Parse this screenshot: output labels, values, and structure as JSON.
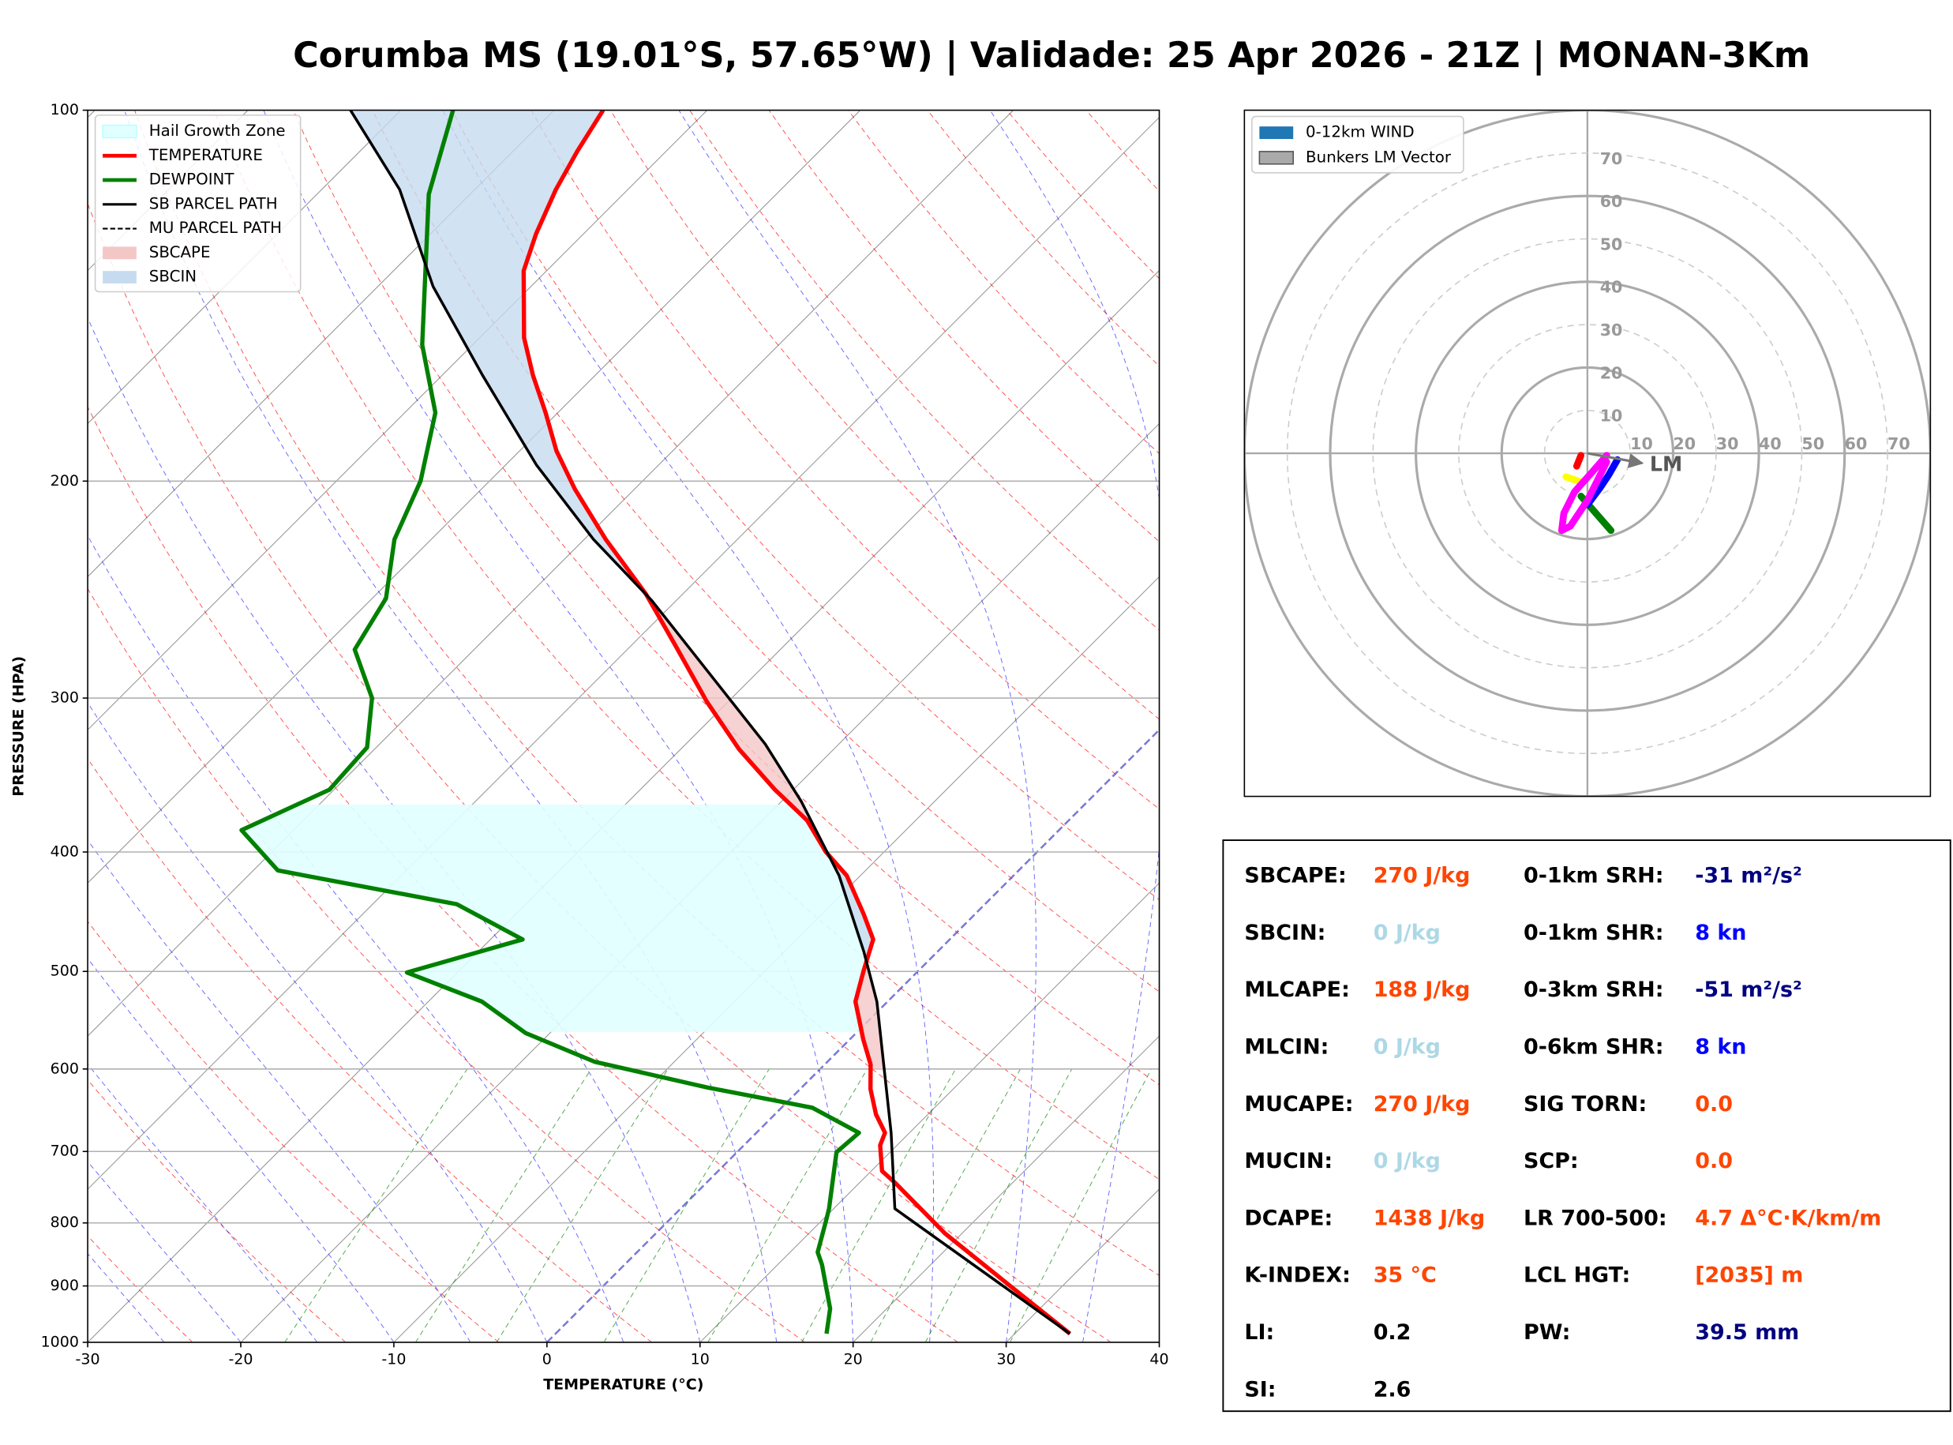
{
  "chart_data": [
    {
      "type": "skewt",
      "title": "Corumba MS (19.01°S, 57.65°W) | Validade: 25 Apr 2026 - 21Z | MONAN-3Km",
      "xlabel": "TEMPERATURE (°C)",
      "ylabel": "PRESSURE (HPA)",
      "xlim": [
        -30,
        40
      ],
      "ylim": [
        1000,
        100
      ],
      "yscale": "log",
      "grid": true,
      "xticks": [
        -30,
        -20,
        -10,
        0,
        10,
        20,
        30,
        40
      ],
      "yticks": [
        100,
        200,
        300,
        400,
        500,
        600,
        700,
        800,
        900,
        1000
      ],
      "series": [
        {
          "name": "TEMPERATURE",
          "color": "#ff0000",
          "style": "solid",
          "pressure": [
            984,
            906,
            816,
            743,
            726,
            692,
            676,
            653,
            623,
            595,
            568,
            529,
            499,
            471,
            449,
            418,
            400,
            377,
            356,
            330,
            302,
            272,
            247,
            223,
            203,
            189,
            176,
            164,
            153,
            135,
            126,
            116,
            108,
            100
          ],
          "values": [
            33.6,
            27.1,
            18.9,
            12.4,
            10.7,
            8.9,
            8.4,
            6.6,
            4.6,
            3.0,
            0.9,
            -2.1,
            -3.6,
            -5.0,
            -7.3,
            -10.9,
            -13.8,
            -17.1,
            -21.2,
            -26.2,
            -31.4,
            -37.1,
            -42.4,
            -48.6,
            -53.9,
            -57.6,
            -60.8,
            -64.1,
            -67.1,
            -71.5,
            -73.1,
            -74.7,
            -75.8,
            -76.8
          ]
        },
        {
          "name": "DEWPOINT",
          "color": "#008000",
          "style": "solid",
          "pressure": [
            984,
            939,
            865,
            845,
            797,
            779,
            701,
            676,
            645,
            621,
            592,
            561,
            529,
            501,
            471,
            441,
            414,
            384,
            356,
            329,
            300,
            274,
            249,
            223,
            200,
            176,
            155,
            117,
            100
          ],
          "values": [
            17.7,
            16.3,
            12.9,
            11.8,
            10.3,
            9.7,
            6.5,
            6.7,
            2.0,
            -6.2,
            -15.2,
            -21.6,
            -26.5,
            -33.3,
            -27.9,
            -34.5,
            -48.4,
            -53.4,
            -50.3,
            -50.6,
            -53.5,
            -57.8,
            -59.1,
            -62.4,
            -64.5,
            -68.0,
            -73.3,
            -82.7,
            -86.6
          ]
        },
        {
          "name": "SB PARCEL PATH",
          "color": "#000000",
          "style": "solid",
          "pressure": [
            984,
            779,
            676,
            529,
            482,
            418,
            364,
            327,
            285,
            250,
            223,
            194,
            164,
            139,
            116,
            100
          ],
          "values": [
            33.6,
            14.0,
            8.8,
            -0.7,
            -4.8,
            -11.4,
            -18.7,
            -24.8,
            -33.4,
            -41.6,
            -49.4,
            -58.0,
            -67.4,
            -76.4,
            -84.9,
            -93.3
          ]
        },
        {
          "name": "MU PARCEL PATH",
          "color": "#000000",
          "style": "dashed",
          "pressure": [
            984,
            779,
            676,
            529,
            482,
            418,
            364,
            327,
            285,
            250,
            223,
            194,
            164,
            139,
            116,
            100
          ],
          "values": [
            33.6,
            14.0,
            8.8,
            -0.7,
            -4.8,
            -11.4,
            -18.7,
            -24.8,
            -33.4,
            -41.6,
            -49.4,
            -58.0,
            -67.4,
            -76.4,
            -84.9,
            -93.3
          ]
        }
      ],
      "areas": [
        {
          "name": "Hail Growth Zone",
          "color": "#e0ffff",
          "plim": [
            560,
            365
          ]
        },
        {
          "name": "SBCAPE",
          "color": "#f4c7c7"
        },
        {
          "name": "SBCIN",
          "color": "#c6dbef"
        }
      ]
    },
    {
      "type": "hodograph",
      "rlim": [
        0,
        80
      ],
      "rticks": [
        10,
        20,
        30,
        40,
        50,
        60,
        70
      ],
      "series": [
        {
          "color": "#ff0000",
          "u": [
            -1.5,
            -2.5
          ],
          "v": [
            -0.5,
            -3.0
          ]
        },
        {
          "color": "#ffff00",
          "u": [
            -5.0,
            -2.0
          ],
          "v": [
            -5.5,
            -6.5
          ]
        },
        {
          "color": "#008000",
          "u": [
            -1.5,
            2.0,
            5.5
          ],
          "v": [
            -10.0,
            -14.0,
            -18.0
          ]
        },
        {
          "color": "#0000ff",
          "u": [
            7.0,
            5.0,
            3.0,
            0.0
          ],
          "v": [
            -1.5,
            -5.0,
            -8.0,
            -12.0
          ]
        },
        {
          "color": "#ff00ff",
          "u": [
            4.5,
            1.0,
            -3.0,
            -5.5,
            -6.0,
            -4.0,
            0.0,
            4.5
          ],
          "v": [
            -0.5,
            -4.5,
            -9.0,
            -14.0,
            -18.0,
            -17.0,
            -11.0,
            -2.0
          ]
        }
      ],
      "lm": {
        "label": "LM",
        "u": 12.8,
        "v": -2.3
      },
      "legend": [
        {
          "label": "0-12km WIND",
          "color": "#1f77b4"
        },
        {
          "label": "Bunkers LM Vector",
          "color": "#aaaaaa"
        }
      ]
    }
  ],
  "stats": {
    "left": [
      {
        "label": "SBCAPE:",
        "value": "270 J/kg",
        "color": "#ff4500"
      },
      {
        "label": "SBCIN:",
        "value": "0 J/kg",
        "color": "#add8e6"
      },
      {
        "label": "MLCAPE:",
        "value": "188 J/kg",
        "color": "#ff4500"
      },
      {
        "label": "MLCIN:",
        "value": "0 J/kg",
        "color": "#add8e6"
      },
      {
        "label": "MUCAPE:",
        "value": "270 J/kg",
        "color": "#ff4500"
      },
      {
        "label": "MUCIN:",
        "value": "0 J/kg",
        "color": "#add8e6"
      },
      {
        "label": "DCAPE:",
        "value": "1438 J/kg",
        "color": "#ff4500"
      },
      {
        "label": "K-INDEX:",
        "value": "35 °C",
        "color": "#ff4500"
      },
      {
        "label": "LI:",
        "value": "0.2",
        "color": "#000000"
      },
      {
        "label": "SI:",
        "value": "2.6",
        "color": "#000000"
      }
    ],
    "right": [
      {
        "label": "0-1km SRH:",
        "value": "-31 m²/s²",
        "color": "#000080"
      },
      {
        "label": "0-1km SHR:",
        "value": "8 kn",
        "color": "#0000ff"
      },
      {
        "label": "0-3km SRH:",
        "value": "-51 m²/s²",
        "color": "#000080"
      },
      {
        "label": "0-6km SHR:",
        "value": "8 kn",
        "color": "#0000ff"
      },
      {
        "label": "SIG TORN:",
        "value": "0.0",
        "color": "#ff4500"
      },
      {
        "label": "SCP:",
        "value": "0.0",
        "color": "#ff4500"
      },
      {
        "label": "LR 700-500:",
        "value": "4.7 Δ°C·K/km/m",
        "color": "#ff4500"
      },
      {
        "label": "LCL HGT:",
        "value": "[2035] m",
        "color": "#ff4500"
      },
      {
        "label": "PW:",
        "value": "39.5 mm",
        "color": "#000080"
      }
    ]
  }
}
